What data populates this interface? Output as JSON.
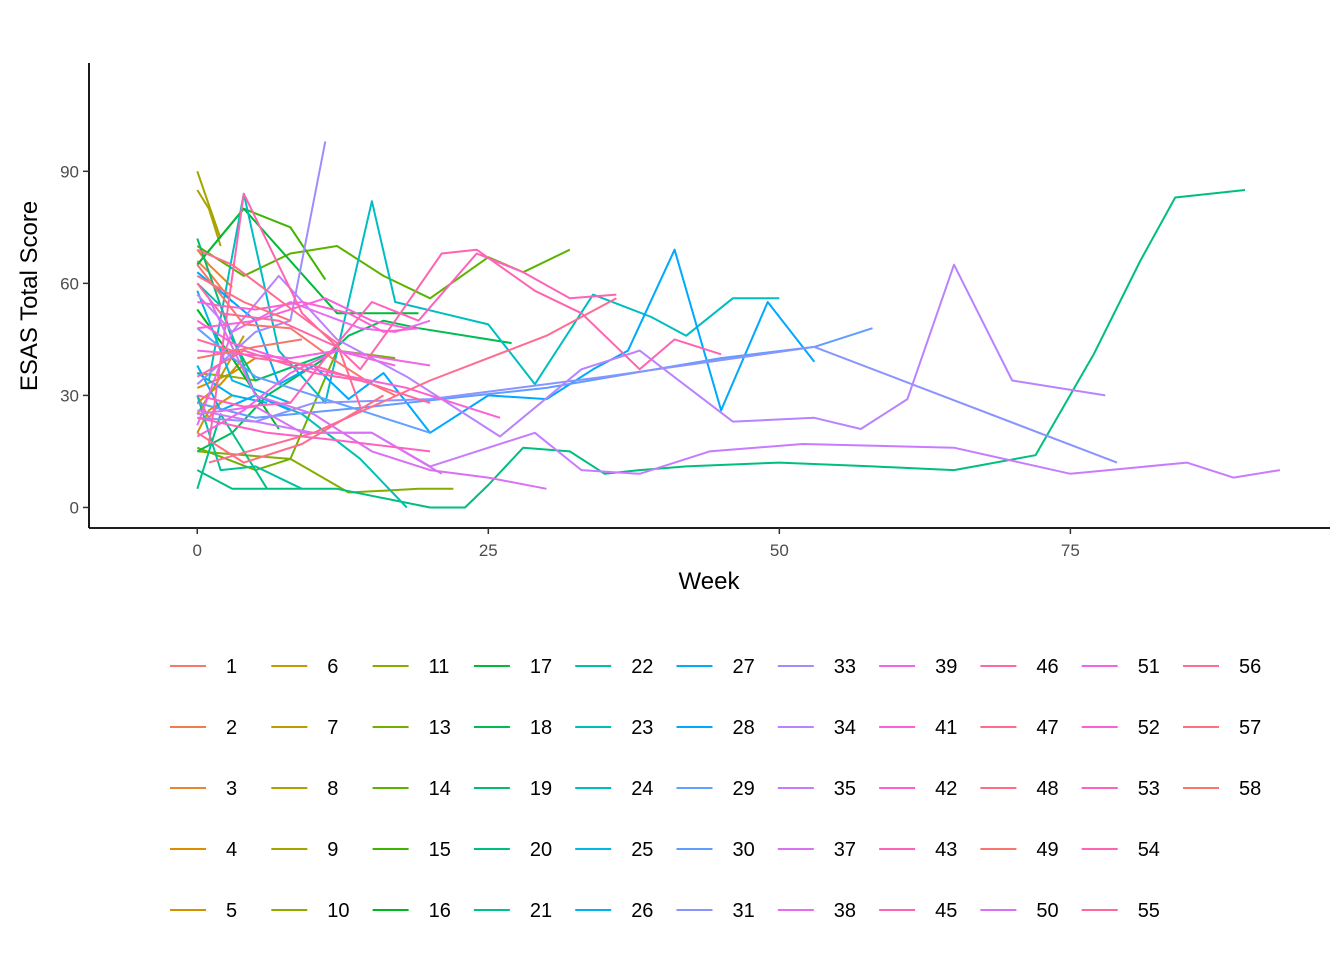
{
  "chart_data": {
    "type": "line",
    "xlabel": "Week",
    "ylabel": "ESAS Total Score",
    "xlim": [
      -9.3,
      97.3
    ],
    "ylim": [
      -5.5,
      119
    ],
    "x_ticks": [
      0,
      25,
      50,
      75
    ],
    "y_ticks": [
      0,
      30,
      60,
      90
    ],
    "grid": false,
    "legend_position": "bottom",
    "series": [
      {
        "name": "1",
        "color": "#F8766D",
        "x": [
          0,
          1,
          2
        ],
        "y": [
          30,
          24,
          28
        ]
      },
      {
        "name": "2",
        "color": "#F07E4C",
        "x": [
          0,
          1,
          3
        ],
        "y": [
          66,
          63,
          55
        ]
      },
      {
        "name": "3",
        "color": "#E8852F",
        "x": [
          0,
          1,
          3
        ],
        "y": [
          69,
          65,
          59
        ]
      },
      {
        "name": "4",
        "color": "#DE8C00",
        "x": [
          0,
          3,
          5
        ],
        "y": [
          32,
          36,
          40
        ]
      },
      {
        "name": "5",
        "color": "#D39200",
        "x": [
          0,
          2,
          4
        ],
        "y": [
          28,
          33,
          40
        ]
      },
      {
        "name": "6",
        "color": "#C89800",
        "x": [
          0,
          1,
          3
        ],
        "y": [
          20,
          26,
          30
        ]
      },
      {
        "name": "7",
        "color": "#BA9E00",
        "x": [
          0,
          2,
          4
        ],
        "y": [
          25,
          35,
          46
        ]
      },
      {
        "name": "8",
        "color": "#ADA200",
        "x": [
          0,
          1,
          2
        ],
        "y": [
          85,
          80,
          70
        ]
      },
      {
        "name": "9",
        "color": "#A3A500",
        "x": [
          0,
          1,
          2
        ],
        "y": [
          90,
          81,
          72
        ]
      },
      {
        "name": "10",
        "color": "#93AA00",
        "x": [
          0,
          3,
          5
        ],
        "y": [
          36,
          35,
          34
        ]
      },
      {
        "name": "11",
        "color": "#84AD00",
        "x": [
          0,
          8,
          13,
          16,
          19,
          21,
          22
        ],
        "y": [
          15,
          13,
          4,
          4.5,
          5,
          5,
          5
        ]
      },
      {
        "name": "13",
        "color": "#72B000",
        "x": [
          0,
          5,
          8,
          12,
          17
        ],
        "y": [
          16,
          10,
          13,
          42,
          40
        ]
      },
      {
        "name": "14",
        "color": "#5BB300",
        "x": [
          0,
          4,
          8,
          12,
          16,
          20,
          25,
          28,
          32
        ],
        "y": [
          70,
          62,
          68,
          70,
          62,
          56,
          67,
          63,
          69
        ]
      },
      {
        "name": "15",
        "color": "#3EB500",
        "x": [
          0,
          4,
          8,
          11
        ],
        "y": [
          65,
          80,
          75,
          61
        ]
      },
      {
        "name": "16",
        "color": "#00B81F",
        "x": [
          0,
          3,
          7
        ],
        "y": [
          53,
          40,
          21
        ]
      },
      {
        "name": "17",
        "color": "#00BA38",
        "x": [
          0,
          4,
          12,
          19
        ],
        "y": [
          65,
          80,
          52,
          52
        ]
      },
      {
        "name": "18",
        "color": "#00BC52",
        "x": [
          0,
          3,
          6,
          11,
          13,
          16,
          19,
          27
        ],
        "y": [
          15,
          20,
          30,
          40,
          46,
          50,
          48,
          44
        ]
      },
      {
        "name": "19",
        "color": "#00BE6C",
        "x": [
          0,
          3,
          5,
          12
        ],
        "y": [
          72,
          45,
          34,
          42
        ]
      },
      {
        "name": "20",
        "color": "#00BF7D",
        "x": [
          0,
          3,
          12,
          20,
          23,
          25,
          28,
          32,
          35,
          38,
          42,
          50,
          58,
          65,
          72,
          77,
          81,
          84,
          90
        ],
        "y": [
          10,
          5,
          5,
          0,
          0,
          6,
          16,
          15,
          9,
          10,
          11,
          12,
          11,
          10,
          14,
          41,
          66,
          83,
          85
        ]
      },
      {
        "name": "21",
        "color": "#00C08B",
        "x": [
          0,
          2,
          4,
          6
        ],
        "y": [
          5,
          25,
          15,
          5
        ]
      },
      {
        "name": "22",
        "color": "#00C1A0",
        "x": [
          0,
          2,
          5,
          9
        ],
        "y": [
          30,
          10,
          11,
          5
        ]
      },
      {
        "name": "23",
        "color": "#00C1B1",
        "x": [
          0,
          2,
          5,
          9,
          14,
          18
        ],
        "y": [
          60,
          54,
          30,
          25,
          13,
          0
        ]
      },
      {
        "name": "24",
        "color": "#00BDC2",
        "x": [
          1,
          4,
          7,
          11,
          15,
          17,
          21,
          25,
          29,
          34,
          39,
          42,
          46,
          50
        ],
        "y": [
          34,
          84,
          42,
          28,
          82,
          55,
          52,
          49,
          33,
          57,
          51,
          46,
          56,
          56
        ]
      },
      {
        "name": "25",
        "color": "#00B8E3",
        "x": [
          0,
          3,
          8
        ],
        "y": [
          58,
          34,
          28
        ]
      },
      {
        "name": "26",
        "color": "#00B3EE",
        "x": [
          0,
          3,
          6
        ],
        "y": [
          36,
          30,
          28
        ]
      },
      {
        "name": "27",
        "color": "#00ADFA",
        "x": [
          0,
          2,
          5,
          8
        ],
        "y": [
          38,
          26,
          30,
          26
        ]
      },
      {
        "name": "28",
        "color": "#00A8FF",
        "x": [
          0,
          5,
          7,
          10,
          13,
          16,
          20,
          25,
          30,
          34,
          37,
          41,
          45,
          49,
          53
        ],
        "y": [
          63,
          50,
          33,
          38,
          29,
          36,
          20,
          30,
          29,
          37,
          42,
          69,
          26,
          55,
          39
        ]
      },
      {
        "name": "29",
        "color": "#61A1FF",
        "x": [
          0,
          5,
          10,
          15,
          20
        ],
        "y": [
          48,
          35,
          30,
          25,
          20
        ]
      },
      {
        "name": "30",
        "color": "#619CFF",
        "x": [
          0,
          5,
          15,
          30,
          45,
          53,
          58
        ],
        "y": [
          28,
          24,
          27,
          32,
          40,
          43,
          48
        ]
      },
      {
        "name": "31",
        "color": "#8A94FF",
        "x": [
          0,
          5,
          10,
          20,
          35,
          53,
          79
        ],
        "y": [
          24,
          23,
          28,
          29,
          35,
          43,
          12
        ]
      },
      {
        "name": "33",
        "color": "#9F8CFF",
        "x": [
          0,
          5,
          8,
          11
        ],
        "y": [
          33,
          47,
          50,
          98
        ]
      },
      {
        "name": "34",
        "color": "#B983FF",
        "x": [
          0,
          3,
          7,
          12,
          18,
          26,
          33,
          38,
          46,
          53,
          57,
          61,
          65,
          70,
          78
        ],
        "y": [
          57,
          47,
          62,
          45,
          35,
          19,
          37,
          42,
          23,
          24,
          21,
          29,
          65,
          34,
          30
        ]
      },
      {
        "name": "35",
        "color": "#C77CFF",
        "x": [
          0,
          5,
          10,
          15,
          20,
          29,
          33,
          38,
          44,
          52,
          65,
          75,
          85,
          89,
          93
        ],
        "y": [
          26,
          23,
          20,
          20,
          11,
          20,
          10,
          9,
          15,
          17,
          16,
          9,
          12,
          8,
          10
        ]
      },
      {
        "name": "37",
        "color": "#DA70F4",
        "x": [
          0,
          5,
          9,
          15,
          21
        ],
        "y": [
          25,
          27,
          20,
          20,
          9
        ]
      },
      {
        "name": "38",
        "color": "#E76BF3",
        "x": [
          0,
          3,
          8,
          14,
          17,
          20
        ],
        "y": [
          22,
          47,
          55,
          48,
          47,
          50
        ]
      },
      {
        "name": "39",
        "color": "#F265E7",
        "x": [
          0,
          4,
          8,
          12,
          16,
          20
        ],
        "y": [
          19,
          26,
          36,
          42,
          40,
          38
        ]
      },
      {
        "name": "41",
        "color": "#FA62DB",
        "x": [
          0,
          5,
          11,
          15,
          18
        ],
        "y": [
          48,
          50,
          56,
          50,
          48
        ]
      },
      {
        "name": "42",
        "color": "#FE61CF",
        "x": [
          0,
          2,
          5,
          9,
          13,
          16,
          19
        ],
        "y": [
          55,
          54,
          53,
          55,
          52,
          47,
          48
        ]
      },
      {
        "name": "43",
        "color": "#FF62BC",
        "x": [
          0,
          4,
          8,
          11,
          15,
          19,
          24,
          28,
          32,
          36
        ],
        "y": [
          30,
          27,
          28,
          40,
          55,
          50,
          68,
          63,
          56,
          57
        ]
      },
      {
        "name": "45",
        "color": "#FF64B0",
        "x": [
          1,
          4,
          9,
          14,
          17,
          21,
          24,
          29,
          33,
          38,
          41,
          45
        ],
        "y": [
          17,
          84,
          52,
          37,
          50,
          68,
          69,
          58,
          52,
          37,
          45,
          41
        ]
      },
      {
        "name": "46",
        "color": "#FF67A4",
        "x": [
          0,
          2,
          7,
          12
        ],
        "y": [
          60,
          52,
          50,
          43
        ]
      },
      {
        "name": "47",
        "color": "#FF6C90",
        "x": [
          0,
          3,
          6,
          9,
          12,
          14
        ],
        "y": [
          69,
          65,
          58,
          51,
          44,
          27
        ]
      },
      {
        "name": "48",
        "color": "#FE6D88",
        "x": [
          0,
          4,
          9,
          16
        ],
        "y": [
          20,
          12,
          17,
          30
        ]
      },
      {
        "name": "49",
        "color": "#F8766D",
        "x": [
          0,
          4,
          8,
          12,
          15,
          17
        ],
        "y": [
          65,
          49,
          48,
          39,
          33,
          30
        ]
      },
      {
        "name": "50",
        "color": "#DA70F4",
        "x": [
          1,
          5,
          10,
          15,
          20,
          25,
          30
        ],
        "y": [
          56,
          30,
          25,
          15,
          10,
          8,
          5
        ]
      },
      {
        "name": "51",
        "color": "#F265E7",
        "x": [
          0,
          8,
          12,
          17
        ],
        "y": [
          42,
          40,
          42,
          38
        ]
      },
      {
        "name": "52",
        "color": "#FB61D7",
        "x": [
          0,
          3,
          10,
          18,
          22,
          26
        ],
        "y": [
          50,
          44,
          37,
          32,
          28,
          24
        ]
      },
      {
        "name": "53",
        "color": "#FF61C3",
        "x": [
          0,
          6,
          12,
          20
        ],
        "y": [
          24,
          20,
          18,
          15
        ]
      },
      {
        "name": "54",
        "color": "#FF64B0",
        "x": [
          0,
          4,
          10,
          14
        ],
        "y": [
          35,
          42,
          36,
          34
        ]
      },
      {
        "name": "55",
        "color": "#FF689F",
        "x": [
          0,
          5,
          10,
          15,
          20
        ],
        "y": [
          45,
          40,
          38,
          33,
          28
        ]
      },
      {
        "name": "56",
        "color": "#FF6C90",
        "x": [
          1,
          10,
          20,
          30,
          36
        ],
        "y": [
          12,
          20,
          34,
          46,
          56
        ]
      },
      {
        "name": "57",
        "color": "#FC717F",
        "x": [
          0,
          4,
          8
        ],
        "y": [
          62,
          55,
          50
        ]
      },
      {
        "name": "58",
        "color": "#F8766D",
        "x": [
          0,
          5,
          9
        ],
        "y": [
          40,
          43,
          45
        ]
      }
    ]
  }
}
